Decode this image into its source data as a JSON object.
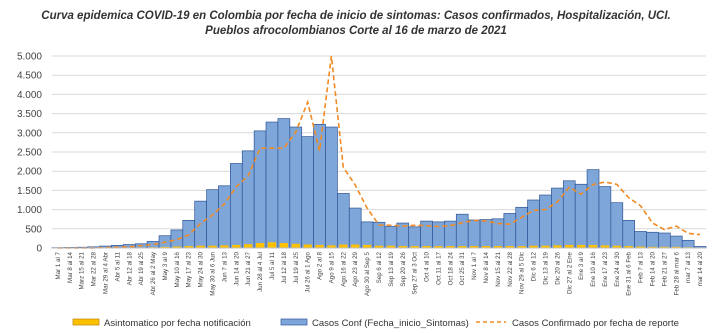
{
  "chart_data": {
    "type": "bar",
    "title": "Curva epidemica COVID-19 en Colombia  por fecha de inicio de sintomas: Casos confirmados, Hospitalización, UCI.",
    "subtitle": "Pueblos afrocolombianos  Corte al 16 de marzo de 2021",
    "xlabel": "",
    "ylabel": "",
    "ylim": [
      0,
      5000
    ],
    "yticks": [
      0,
      500,
      1000,
      1500,
      2000,
      2500,
      3000,
      3500,
      4000,
      4500,
      5000
    ],
    "ytick_labels": [
      "0",
      "500",
      "1.000",
      "1.500",
      "2.000",
      "2.500",
      "3.000",
      "3.500",
      "4.000",
      "4.500",
      "5.000"
    ],
    "grid": true,
    "legend_position": "bottom",
    "categories": [
      "Mar 1 al 7",
      "Mar 8 al 14",
      "Mar 15 al 21",
      "Mar 22 al 28",
      "Mar 29 al 4 Abr",
      "Abr 5 al 11",
      "Abr 12 al 18",
      "Abr 19 al 25",
      "Abr 26 al 2 May",
      "May 3 al 9",
      "May 10 al 16",
      "May 17 al 23",
      "May 24 al 30",
      "May 31 al 6 Jun",
      "Jun 7 al 13",
      "Jun 14 al 20",
      "Jun 21 al 27",
      "Jun 28 al 4 Jul",
      "Jul 5 al 11",
      "Jul 12 al 18",
      "Jul 19 al 25",
      "Jul 26 al 1 Ago",
      "Ago 2 al 8",
      "Ago 9 al 15",
      "Ago 16 al 22",
      "Ago 23 al 29",
      "Ago 30 al 5 Sep",
      "Sep 6 al 12",
      "Sep 13 al 19",
      "Sep 20 al 26",
      "Sep 27 al 3 Oct",
      "Oct 4 al 10",
      "Oct 11 al 17",
      "Oct 18 al 24",
      "Oct 25 al 31",
      "Nov 1 al 7",
      "Nov 8 al 14",
      "Nov 15 al 21",
      "Nov 22 al 28",
      "Nov 29 al 5 Dic",
      "Dic 6 al 12",
      "Dic 13 al 19",
      "Dic 20 al 26",
      "Dic 27 al 2 Ene",
      "Ene 3 al 9",
      "Ene 10 al 16",
      "Ene 17 al 23",
      "Ene 24 al 30",
      "Ene 31 al 6 Feb",
      "Feb 7 al 13",
      "Feb 14 al 20",
      "Feb 21 al 27",
      "Feb 28 al 6 mar",
      "mar 7 al 13",
      "mar 14 al 20"
    ],
    "xtick_labels": [
      "Mar 1 al 7",
      "Mar 8 al 14",
      "Marz 15 al 21",
      "Mar 22 al 28",
      "Mar 29 al 4 Abr",
      "Abr 5 al 11",
      "Abr 12 al 18",
      "Abr 19 al 25",
      "Abr 26 al 2 May",
      "May 3 al 9",
      "May 10 al 16",
      "May 17 al 23",
      "May 24 al 30",
      "May 30 al 6 Jun",
      "Jun 7 al 13",
      "Jun 14 al 20",
      "Jun 21 al 27",
      "Jun 28 al 4 Jul",
      "Jul 5 al 11",
      "Jul 12 al 18",
      "Jul 19 al 25",
      "Jul 26 al 1 Ago",
      "Ago 2 al 8",
      "Ago 9 al 15",
      "Ago 16 al 22",
      "Ago 23 al 29",
      "Ago 30 al Sep 5",
      "Sep 6 al 12",
      "Sep 13 al 19",
      "Sep 20 al 26",
      "Sep 27 al 3 Oct",
      "Oct 4 al 10",
      "Oct 11 al 17",
      "Oct 18 al 24",
      "Oct 25 al 31",
      "Nov 1 al 7",
      "Nov 8 al 14",
      "Nov 15 al 21",
      "Nov 22 al 28",
      "Nov 29 al 5 Dic",
      "Dic 6 al 12",
      "Dic 13 al 19",
      "Dic 20 al 26",
      "Dic 27 al 2 Ene",
      "Ene 3 al 9",
      "Ene 10 al 16",
      "Ene 17 al 23",
      "Ene 24 al 30",
      "Ene 31 al 6 Feb",
      "Feb 7 al 13",
      "Feb 14 al 20",
      "Feb 21 al 27",
      "Feb 28 al mar 6",
      "mar 7 al 13",
      "mar 14 al 20"
    ],
    "series": [
      {
        "name": "Asintomatico  por fecha notificación",
        "kind": "bar",
        "color": "#ffc000",
        "values": [
          0,
          0,
          0,
          0,
          5,
          10,
          10,
          15,
          20,
          30,
          40,
          50,
          60,
          60,
          70,
          80,
          100,
          130,
          150,
          130,
          110,
          90,
          80,
          70,
          90,
          90,
          80,
          60,
          60,
          50,
          50,
          50,
          50,
          50,
          50,
          50,
          50,
          50,
          50,
          50,
          60,
          60,
          70,
          80,
          80,
          80,
          70,
          60,
          50,
          40,
          30,
          30,
          30,
          20,
          10
        ]
      },
      {
        "name": "Casos Conf (Fecha_inicio_Sintomas)",
        "kind": "bar",
        "color": "#7ea6d8",
        "values": [
          10,
          15,
          20,
          30,
          50,
          70,
          90,
          110,
          170,
          320,
          470,
          720,
          1220,
          1520,
          1620,
          2200,
          2530,
          3050,
          3280,
          3370,
          3150,
          2900,
          3220,
          3150,
          1420,
          1040,
          680,
          670,
          560,
          650,
          550,
          700,
          680,
          700,
          880,
          730,
          740,
          760,
          900,
          1060,
          1250,
          1380,
          1560,
          1750,
          1660,
          2040,
          1600,
          1180,
          720,
          430,
          410,
          390,
          310,
          200,
          40
        ]
      },
      {
        "name": "Casos Confirmado por fecha de reporte",
        "kind": "line",
        "color": "#f08a24",
        "dashed": true,
        "values": [
          0,
          0,
          0,
          0,
          10,
          20,
          30,
          60,
          90,
          150,
          220,
          340,
          640,
          860,
          1150,
          1600,
          1880,
          2600,
          2600,
          2600,
          3020,
          3800,
          2530,
          5000,
          2100,
          1640,
          1040,
          600,
          590,
          570,
          590,
          580,
          560,
          580,
          660,
          720,
          700,
          640,
          620,
          800,
          980,
          1000,
          1200,
          1580,
          1400,
          1650,
          1720,
          1660,
          1310,
          1100,
          650,
          480,
          570,
          380,
          350
        ]
      }
    ]
  }
}
